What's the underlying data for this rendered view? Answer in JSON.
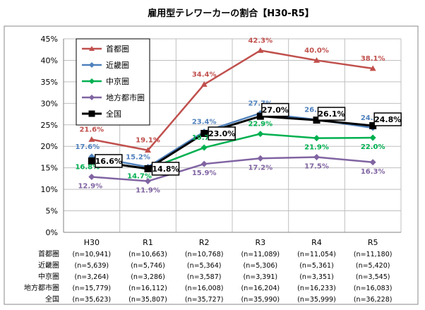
{
  "chart_data": {
    "type": "line",
    "title": "雇用型テレワーカーの割合【H30-R5】",
    "categories": [
      "H30",
      "R1",
      "R2",
      "R3",
      "R4",
      "R5"
    ],
    "ylim": [
      0,
      45
    ],
    "yticks": [
      "0%",
      "5%",
      "10%",
      "15%",
      "20%",
      "25%",
      "30%",
      "35%",
      "40%",
      "45%"
    ],
    "grid": true,
    "legend_position": "top-left",
    "series": [
      {
        "name": "首都圏",
        "color": "#c0504d",
        "marker": "triangle",
        "values": [
          21.6,
          19.1,
          34.4,
          42.3,
          40.0,
          38.1
        ],
        "labels": [
          "21.6%",
          "19.1%",
          "34.4%",
          "42.3%",
          "40.0%",
          "38.1%"
        ],
        "n": [
          "(n=10,941)",
          "(n=10,663)",
          "(n=10,768)",
          "(n=11,089)",
          "(n=11,054)",
          "(n=11,180)"
        ]
      },
      {
        "name": "近畿圏",
        "color": "#4f81bd",
        "marker": "diamond",
        "values": [
          17.6,
          15.2,
          23.4,
          27.7,
          26.2,
          24.3
        ],
        "labels": [
          "17.6%",
          "15.2%",
          "23.4%",
          "27.7%",
          "26.2%",
          "24.3%"
        ],
        "n": [
          "(n=5,639)",
          "(n=5,746)",
          "(n=5,364)",
          "(n=5,306)",
          "(n=5,361)",
          "(n=5,420)"
        ]
      },
      {
        "name": "中京圏",
        "color": "#00b050",
        "marker": "diamond",
        "values": [
          16.8,
          14.7,
          19.7,
          22.9,
          21.9,
          22.0
        ],
        "labels": [
          "16.8%",
          "14.7%",
          "19.7%",
          "22.9%",
          "21.9%",
          "22.0%"
        ],
        "n": [
          "(n=3,264)",
          "(n=3,286)",
          "(n=3,587)",
          "(n=3,391)",
          "(n=3,351)",
          "(n=3,545)"
        ]
      },
      {
        "name": "地方都市圏",
        "color": "#8064a2",
        "marker": "diamond",
        "values": [
          12.9,
          11.9,
          15.9,
          17.2,
          17.5,
          16.3
        ],
        "labels": [
          "12.9%",
          "11.9%",
          "15.9%",
          "17.2%",
          "17.5%",
          "16.3%"
        ],
        "n": [
          "(n=15,779)",
          "(n=16,112)",
          "(n=16,008)",
          "(n=16,204)",
          "(n=16,233)",
          "(n=16,083)"
        ]
      },
      {
        "name": "全国",
        "color": "#000000",
        "marker": "square",
        "values": [
          16.6,
          14.8,
          23.0,
          27.0,
          26.1,
          24.8
        ],
        "labels": [
          "16.6%",
          "14.8%",
          "23.0%",
          "27.0%",
          "26.1%",
          "24.8%"
        ],
        "boxed": true,
        "n": [
          "(n=35,623)",
          "(n=35,807)",
          "(n=35,727)",
          "(n=35,990)",
          "(n=35,999)",
          "(n=36,228)"
        ]
      }
    ]
  }
}
